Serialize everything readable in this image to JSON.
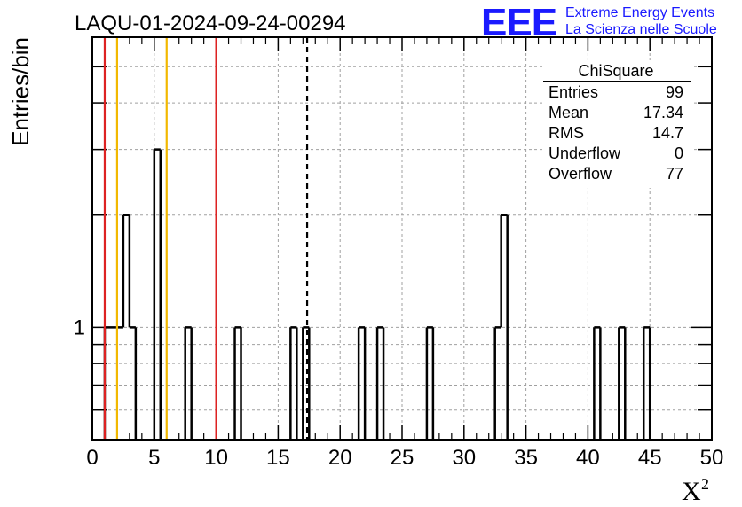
{
  "header": {
    "title": "LAQU-01-2024-09-24-00294"
  },
  "logo": {
    "mark": "EEE",
    "line1": "Extreme Energy Events",
    "line2": "La Scienza nelle Scuole",
    "color": "#1a1aff"
  },
  "stats_box": {
    "title": "ChiSquare",
    "rows": [
      {
        "label": "Entries",
        "value": "99"
      },
      {
        "label": "Mean",
        "value": "17.34"
      },
      {
        "label": "RMS",
        "value": "14.7"
      },
      {
        "label": "Underflow",
        "value": "0"
      },
      {
        "label": "Overflow",
        "value": "77"
      }
    ]
  },
  "chart_data": {
    "type": "histogram",
    "xlabel": "X",
    "xlabel_superscript": "2",
    "ylabel": "Entries/bin",
    "xlim": [
      0,
      50
    ],
    "x_ticks": [
      "0",
      "5",
      "10",
      "15",
      "20",
      "25",
      "30",
      "35",
      "40",
      "45",
      "50"
    ],
    "y_scale": "log",
    "ylim": [
      0.5,
      6
    ],
    "y_tick_labels": [
      "1"
    ],
    "bin_width": 0.5,
    "bins": [
      {
        "x0": 1.0,
        "count": 1
      },
      {
        "x0": 1.5,
        "count": 1
      },
      {
        "x0": 2.0,
        "count": 1
      },
      {
        "x0": 2.5,
        "count": 2
      },
      {
        "x0": 3.0,
        "count": 1
      },
      {
        "x0": 5.0,
        "count": 3
      },
      {
        "x0": 7.5,
        "count": 1
      },
      {
        "x0": 11.5,
        "count": 1
      },
      {
        "x0": 16.0,
        "count": 1
      },
      {
        "x0": 17.0,
        "count": 1
      },
      {
        "x0": 21.5,
        "count": 1
      },
      {
        "x0": 23.0,
        "count": 1
      },
      {
        "x0": 27.0,
        "count": 1
      },
      {
        "x0": 32.5,
        "count": 1
      },
      {
        "x0": 33.0,
        "count": 2
      },
      {
        "x0": 40.5,
        "count": 1
      },
      {
        "x0": 42.5,
        "count": 1
      },
      {
        "x0": 44.5,
        "count": 1
      }
    ],
    "reference_lines": [
      {
        "x": 1.0,
        "color": "#dd2222",
        "style": "solid"
      },
      {
        "x": 2.0,
        "color": "#f2b800",
        "style": "solid"
      },
      {
        "x": 6.0,
        "color": "#f2b800",
        "style": "solid"
      },
      {
        "x": 10.0,
        "color": "#dd2222",
        "style": "solid"
      },
      {
        "x": 17.34,
        "color": "#000000",
        "style": "dashed"
      }
    ],
    "grid": true,
    "grid_color": "#a0a0a0"
  }
}
